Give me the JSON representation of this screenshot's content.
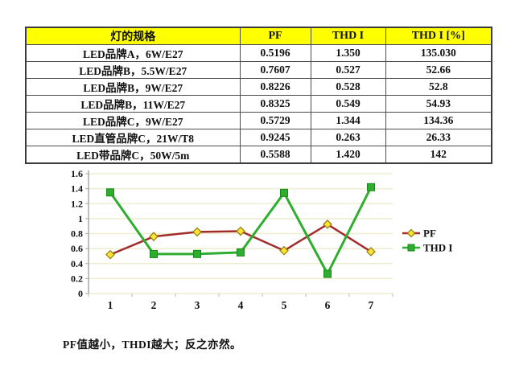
{
  "page": {
    "background": "#ffffff",
    "caption": "PF值越小，THDI越大；反之亦然。"
  },
  "table": {
    "header_bg": "#ffff00",
    "columns": [
      "灯的规格",
      "PF",
      "THD I",
      "THD I [%]"
    ],
    "rows": [
      [
        "LED品牌A，6W/E27",
        "0.5196",
        "1.350",
        "135.030"
      ],
      [
        "LED品牌B，5.5W/E27",
        "0.7607",
        "0.527",
        "52.66"
      ],
      [
        "LED品牌B，9W/E27",
        "0.8226",
        "0.528",
        "52.8"
      ],
      [
        "LED品牌B，11W/E27",
        "0.8325",
        "0.549",
        "54.93"
      ],
      [
        "LED品牌C，9W/E27",
        "0.5729",
        "1.344",
        "134.36"
      ],
      [
        "LED直管品牌C，21W/T8",
        "0.9245",
        "0.263",
        "26.33"
      ],
      [
        "LED带品牌C，50W/5m",
        "0.5588",
        "1.420",
        "142"
      ]
    ]
  },
  "chart_data": {
    "type": "line",
    "x": [
      1,
      2,
      3,
      4,
      5,
      6,
      7
    ],
    "xticklabels": [
      "1",
      "2",
      "3",
      "4",
      "5",
      "6",
      "7"
    ],
    "series": [
      {
        "name": "PF",
        "values": [
          0.5196,
          0.7607,
          0.8226,
          0.8325,
          0.5729,
          0.9245,
          0.5588
        ],
        "color": "#a22b2b",
        "marker": "diamond",
        "marker_fill": "#ffe13a",
        "marker_stroke": "#8f7f00"
      },
      {
        "name": "THD I",
        "values": [
          1.35,
          0.527,
          0.528,
          0.549,
          1.344,
          0.263,
          1.42
        ],
        "color": "#2fad2f",
        "marker": "square",
        "marker_fill": "#2fad2f",
        "marker_stroke": "#188a18"
      }
    ],
    "title": "",
    "xlabel": "",
    "ylabel": "",
    "ylim": [
      0,
      1.6
    ],
    "yticks": [
      0,
      0.2,
      0.4,
      0.6,
      0.8,
      1,
      1.2,
      1.4,
      1.6
    ],
    "yticklabels": [
      "0",
      "0.2",
      "0.4",
      "0.6",
      "0.8",
      "1",
      "1.2",
      "1.4",
      "1.6"
    ],
    "grid": true,
    "legend_position": "right",
    "gridline_color": "#eeedd0",
    "axis_color": "#a9a9a9",
    "boundary_tick_color": "#bdbd9d"
  }
}
